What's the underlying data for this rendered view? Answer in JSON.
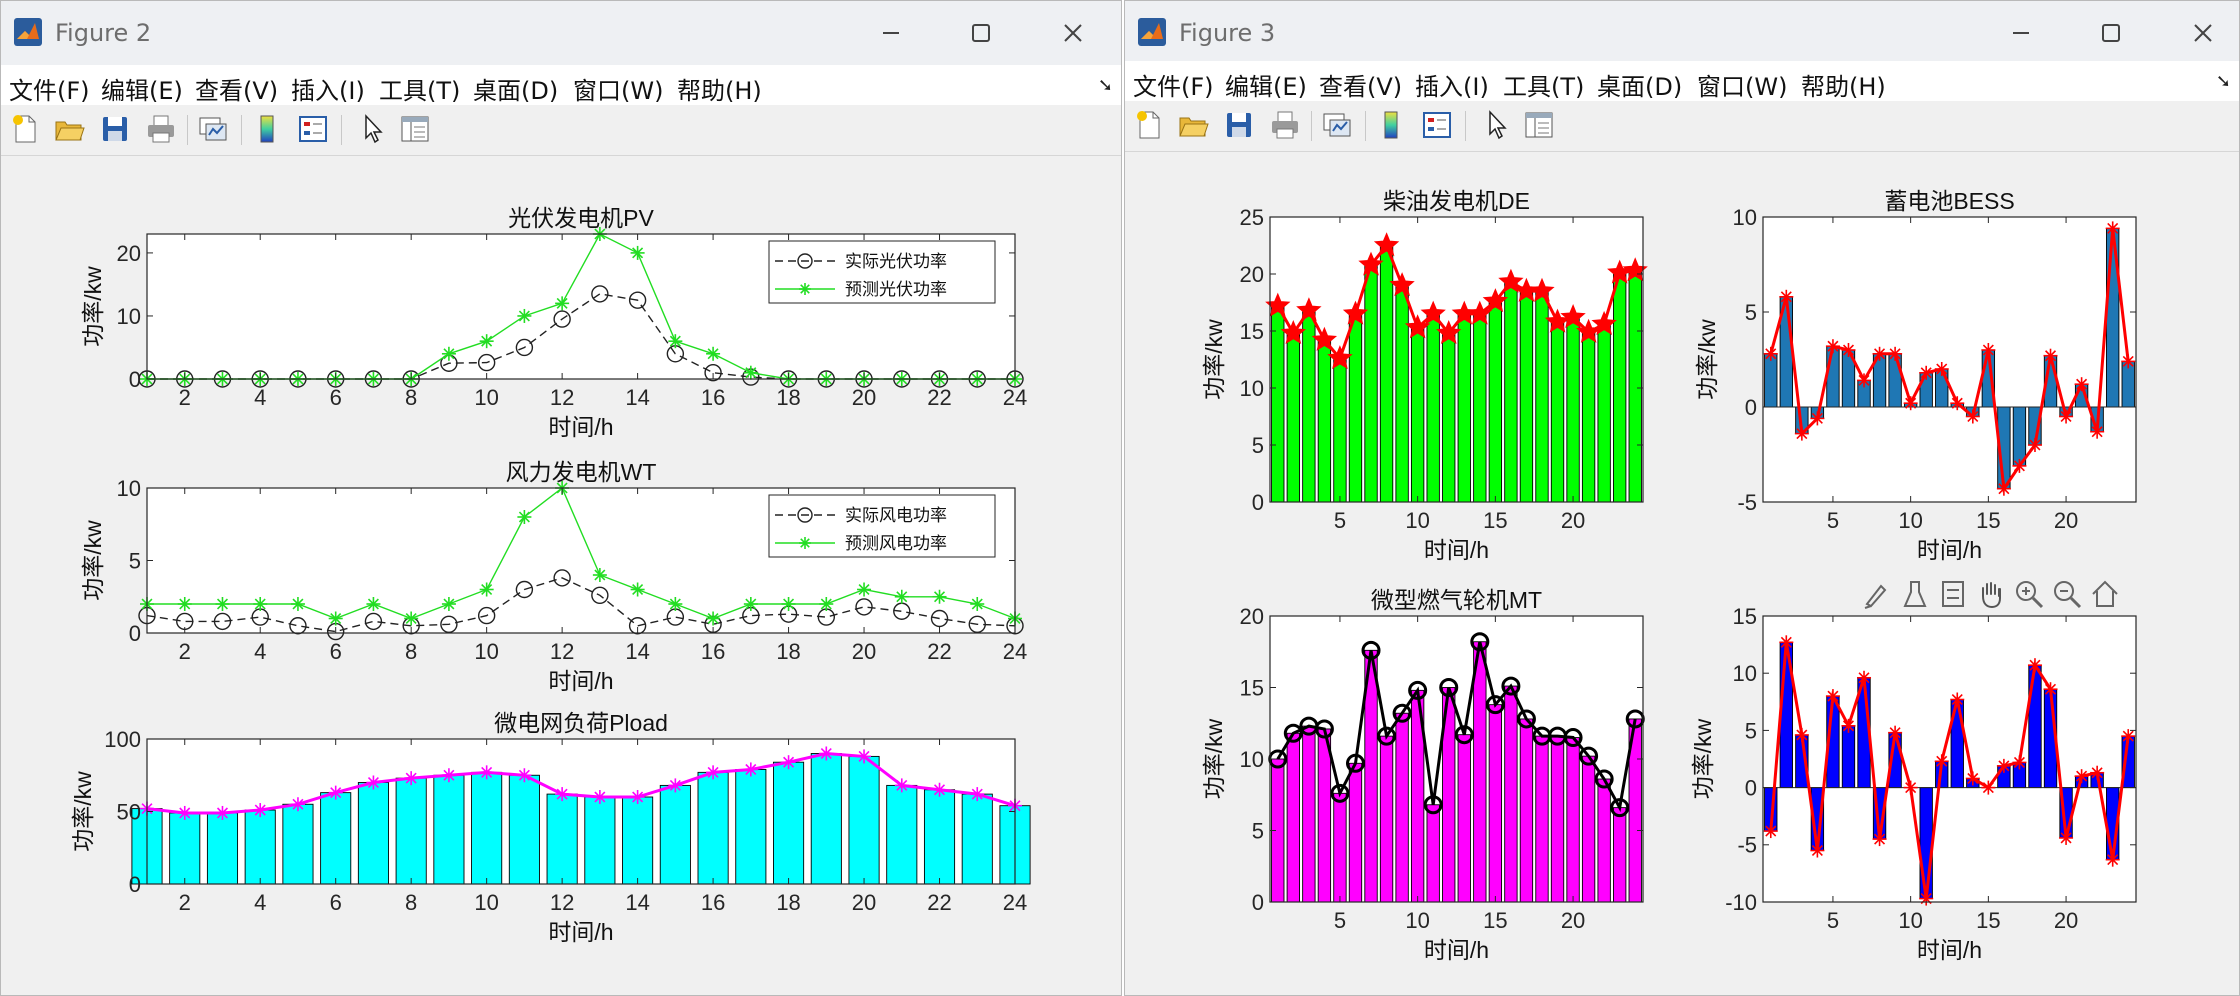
{
  "windows": [
    {
      "title": "Figure 2",
      "menu": [
        "文件(F)",
        "编辑(E)",
        "查看(V)",
        "插入(I)",
        "工具(T)",
        "桌面(D)",
        "窗口(W)",
        "帮助(H)"
      ],
      "toolbar_icons": [
        "new-figure-icon",
        "open-file-icon",
        "save-icon",
        "print-icon",
        "link-plot-icon",
        "colorbar-icon",
        "legend-icon",
        "edit-plot-arrow-icon",
        "property-inspector-icon"
      ]
    },
    {
      "title": "Figure 3",
      "menu": [
        "文件(F)",
        "编辑(E)",
        "查看(V)",
        "插入(I)",
        "工具(T)",
        "桌面(D)",
        "窗口(W)",
        "帮助(H)"
      ],
      "toolbar_icons": [
        "new-figure-icon",
        "open-file-icon",
        "save-icon",
        "print-icon",
        "link-plot-icon",
        "colorbar-icon",
        "legend-icon",
        "edit-plot-arrow-icon",
        "property-inspector-icon"
      ],
      "axes_toolbar_icons": [
        "brush-icon",
        "data-tips-icon",
        "restore-view-icon",
        "pan-hand-icon",
        "zoom-in-icon",
        "zoom-out-icon",
        "home-icon"
      ]
    }
  ],
  "colors": {
    "green": "#00ff00",
    "magenta": "#ff00ff",
    "cyan": "#00ffff",
    "red": "#ff0000",
    "blue_bar": "#1f77b4",
    "blue": "#0000ff",
    "black": "#000000"
  },
  "chart_data": [
    {
      "id": "pv",
      "type": "line",
      "title": "光伏发电机PV",
      "xlabel": "时间/h",
      "ylabel": "功率/kw",
      "xlim": [
        1,
        24
      ],
      "ylim": [
        0,
        23
      ],
      "xticks": [
        2,
        4,
        6,
        8,
        10,
        12,
        14,
        16,
        18,
        20,
        22,
        24
      ],
      "yticks": [
        0,
        10,
        20
      ],
      "legend": "top-right",
      "x": [
        1,
        2,
        3,
        4,
        5,
        6,
        7,
        8,
        9,
        10,
        11,
        12,
        13,
        14,
        15,
        16,
        17,
        18,
        19,
        20,
        21,
        22,
        23,
        24
      ],
      "series": [
        {
          "name": "实际光伏功率",
          "style": "black dashed, open circles",
          "values": [
            0,
            0,
            0,
            0,
            0,
            0,
            0,
            0,
            2.5,
            2.6,
            5,
            9.5,
            13.5,
            12.5,
            4,
            1,
            0.3,
            0,
            0,
            0,
            0,
            0,
            0,
            0
          ]
        },
        {
          "name": "预测光伏功率",
          "style": "green solid, star markers",
          "values": [
            0,
            0,
            0,
            0,
            0,
            0,
            0,
            0,
            4,
            6,
            10,
            12,
            23,
            20,
            6,
            4,
            1,
            0,
            0,
            0,
            0,
            0,
            0,
            0
          ]
        }
      ]
    },
    {
      "id": "wt",
      "type": "line",
      "title": "风力发电机WT",
      "xlabel": "时间/h",
      "ylabel": "功率/kw",
      "xlim": [
        1,
        24
      ],
      "ylim": [
        0,
        10
      ],
      "xticks": [
        2,
        4,
        6,
        8,
        10,
        12,
        14,
        16,
        18,
        20,
        22,
        24
      ],
      "yticks": [
        0,
        5,
        10
      ],
      "legend": "top-right",
      "x": [
        1,
        2,
        3,
        4,
        5,
        6,
        7,
        8,
        9,
        10,
        11,
        12,
        13,
        14,
        15,
        16,
        17,
        18,
        19,
        20,
        21,
        22,
        23,
        24
      ],
      "series": [
        {
          "name": "实际风电功率",
          "style": "black dashed, open circles",
          "values": [
            1.2,
            0.8,
            0.8,
            1.1,
            0.5,
            0.1,
            0.8,
            0.5,
            0.6,
            1.2,
            3,
            3.8,
            2.6,
            0.5,
            1.1,
            0.6,
            1.2,
            1.3,
            1.1,
            1.8,
            1.5,
            1,
            0.6,
            0.5
          ]
        },
        {
          "name": "预测风电功率",
          "style": "green solid, star markers",
          "values": [
            2,
            2,
            2,
            2,
            2,
            1,
            2,
            1,
            2,
            3,
            8,
            10,
            4,
            3,
            2,
            1,
            2,
            2,
            2,
            3,
            2.5,
            2.5,
            2,
            1
          ]
        }
      ]
    },
    {
      "id": "pload",
      "type": "bar",
      "title": "微电网负荷Pload",
      "xlabel": "时间/h",
      "ylabel": "功率/kw",
      "xlim": [
        1,
        24
      ],
      "ylim": [
        0,
        100
      ],
      "xticks": [
        2,
        4,
        6,
        8,
        10,
        12,
        14,
        16,
        18,
        20,
        22,
        24
      ],
      "yticks": [
        0,
        50,
        100
      ],
      "x": [
        1,
        2,
        3,
        4,
        5,
        6,
        7,
        8,
        9,
        10,
        11,
        12,
        13,
        14,
        15,
        16,
        17,
        18,
        19,
        20,
        21,
        22,
        23,
        24
      ],
      "values": [
        52,
        49,
        49,
        51,
        55,
        63,
        70,
        73,
        75,
        77,
        75,
        62,
        60,
        60,
        68,
        77,
        79,
        84,
        90,
        88,
        68,
        65,
        62,
        54
      ],
      "overlay": "magenta line with star markers"
    },
    {
      "id": "de",
      "type": "bar",
      "title": "柴油发电机DE",
      "xlabel": "时间/h",
      "ylabel": "功率/kw",
      "xlim": [
        0.5,
        24.5
      ],
      "ylim": [
        0,
        25
      ],
      "xticks": [
        5,
        10,
        15,
        20
      ],
      "yticks": [
        0,
        5,
        10,
        15,
        20,
        25
      ],
      "x": [
        1,
        2,
        3,
        4,
        5,
        6,
        7,
        8,
        9,
        10,
        11,
        12,
        13,
        14,
        15,
        16,
        17,
        18,
        19,
        20,
        21,
        22,
        23,
        24
      ],
      "values": [
        17.2,
        14.8,
        16.8,
        14.2,
        12.6,
        16.5,
        20.8,
        22.5,
        19,
        15.3,
        16.5,
        14.8,
        16.5,
        16.5,
        17.6,
        19.3,
        18.5,
        18.5,
        15.8,
        16.2,
        14.9,
        15.6,
        20.1,
        20.3
      ],
      "overlay": "red line with star markers"
    },
    {
      "id": "bess",
      "type": "bar",
      "title": "蓄电池BESS",
      "xlabel": "时间/h",
      "ylabel": "功率/kw",
      "xlim": [
        0.5,
        24.5
      ],
      "ylim": [
        -5,
        10
      ],
      "xticks": [
        5,
        10,
        15,
        20
      ],
      "yticks": [
        -5,
        0,
        5,
        10
      ],
      "x": [
        1,
        2,
        3,
        4,
        5,
        6,
        7,
        8,
        9,
        10,
        11,
        12,
        13,
        14,
        15,
        16,
        17,
        18,
        19,
        20,
        21,
        22,
        23,
        24
      ],
      "values": [
        2.8,
        5.8,
        -1.4,
        -0.6,
        3.2,
        3.0,
        1.4,
        2.8,
        2.8,
        0.2,
        1.8,
        2.0,
        0.2,
        -0.5,
        3.0,
        -4.3,
        -3.1,
        -2.0,
        2.7,
        -0.5,
        1.2,
        -1.3,
        9.4,
        2.4
      ],
      "overlay": "red line with star markers"
    },
    {
      "id": "mt",
      "type": "bar",
      "title": "微型燃气轮机MT",
      "xlabel": "时间/h",
      "ylabel": "功率/kw",
      "xlim": [
        0.5,
        24.5
      ],
      "ylim": [
        0,
        20
      ],
      "xticks": [
        5,
        10,
        15,
        20
      ],
      "yticks": [
        0,
        5,
        10,
        15,
        20
      ],
      "x": [
        1,
        2,
        3,
        4,
        5,
        6,
        7,
        8,
        9,
        10,
        11,
        12,
        13,
        14,
        15,
        16,
        17,
        18,
        19,
        20,
        21,
        22,
        23,
        24
      ],
      "values": [
        10,
        11.8,
        12.3,
        12.1,
        7.6,
        9.7,
        17.6,
        11.6,
        13.2,
        14.8,
        6.8,
        15,
        11.7,
        18.2,
        13.8,
        15.1,
        12.8,
        11.6,
        11.6,
        11.5,
        10.2,
        8.6,
        6.6,
        12.8
      ],
      "overlay": "black line with circle markers"
    },
    {
      "id": "p4",
      "type": "bar",
      "title": "",
      "xlabel": "时间/h",
      "ylabel": "功率/kw",
      "xlim": [
        0.5,
        24.5
      ],
      "ylim": [
        -10,
        15
      ],
      "xticks": [
        5,
        10,
        15,
        20
      ],
      "yticks": [
        -10,
        -5,
        0,
        5,
        10,
        15
      ],
      "x": [
        1,
        2,
        3,
        4,
        5,
        6,
        7,
        8,
        9,
        10,
        11,
        12,
        13,
        14,
        15,
        16,
        17,
        18,
        19,
        20,
        21,
        22,
        23,
        24
      ],
      "values": [
        -3.8,
        12.7,
        4.6,
        -5.5,
        8.0,
        5.4,
        9.6,
        -4.5,
        4.8,
        0,
        -9.7,
        2.3,
        7.7,
        0.8,
        0,
        1.9,
        2.2,
        10.7,
        8.6,
        -4.4,
        1.0,
        1.3,
        -6.3,
        4.5
      ],
      "overlay": "red line with star markers"
    }
  ]
}
